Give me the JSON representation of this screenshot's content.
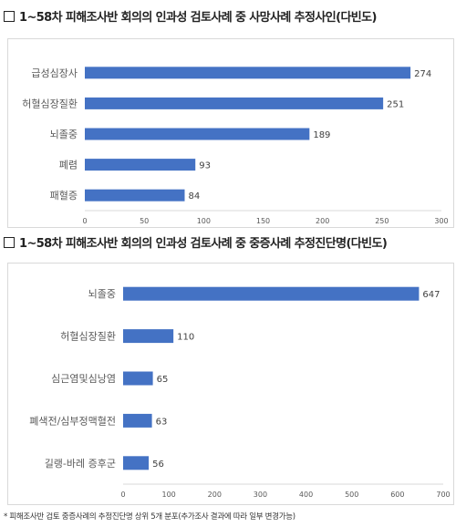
{
  "headings": {
    "top": "1~58차 피해조사반 회의의 인과성 검토사례 중 사망사례 추정사인(다빈도)",
    "bottom": "1~58차 피해조사반 회의의 인과성 검토사례 중 중증사례 추정진단명(다빈도)"
  },
  "footnote": "* 피해조사반 검토 중증사례의 추정진단명 상위 5개 분포(추가조사 결과에 따라 일부 변경가능)",
  "colors": {
    "bar": "#4472C4",
    "axis": "#d9d9d9",
    "text": "#595959"
  },
  "chart_data": [
    {
      "type": "bar",
      "orientation": "horizontal",
      "categories": [
        "급성심장사",
        "허혈심장질환",
        "뇌졸중",
        "폐렴",
        "패혈증"
      ],
      "values": [
        274,
        251,
        189,
        93,
        84
      ],
      "xlim": [
        0,
        300
      ],
      "ticks": [
        0,
        50,
        100,
        150,
        200,
        250,
        300
      ],
      "grid": false
    },
    {
      "type": "bar",
      "orientation": "horizontal",
      "categories": [
        "뇌졸중",
        "허혈심장질환",
        "심근염및심낭염",
        "폐색전/심부정맥혈전",
        "길랭-바레 증후군"
      ],
      "values": [
        647,
        110,
        65,
        63,
        56
      ],
      "xlim": [
        0,
        700
      ],
      "ticks": [
        0,
        100,
        200,
        300,
        400,
        500,
        600,
        700
      ],
      "grid": false
    }
  ]
}
